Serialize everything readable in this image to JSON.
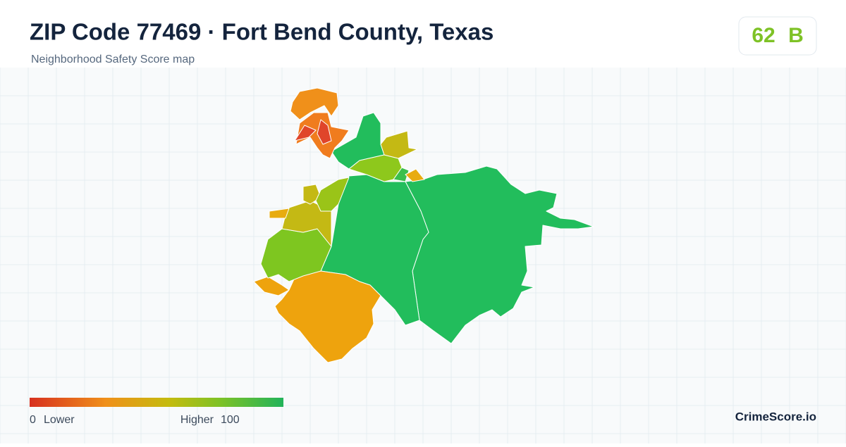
{
  "header": {
    "title": "ZIP Code 77469 · Fort Bend County, Texas",
    "subtitle": "Neighborhood Safety Score map"
  },
  "score": {
    "value": 62,
    "grade": "B"
  },
  "legend": {
    "min": 0,
    "min_label": "Lower",
    "max_label": "Higher",
    "max": 100
  },
  "footer": {
    "brand": "CrimeScore.io"
  }
}
